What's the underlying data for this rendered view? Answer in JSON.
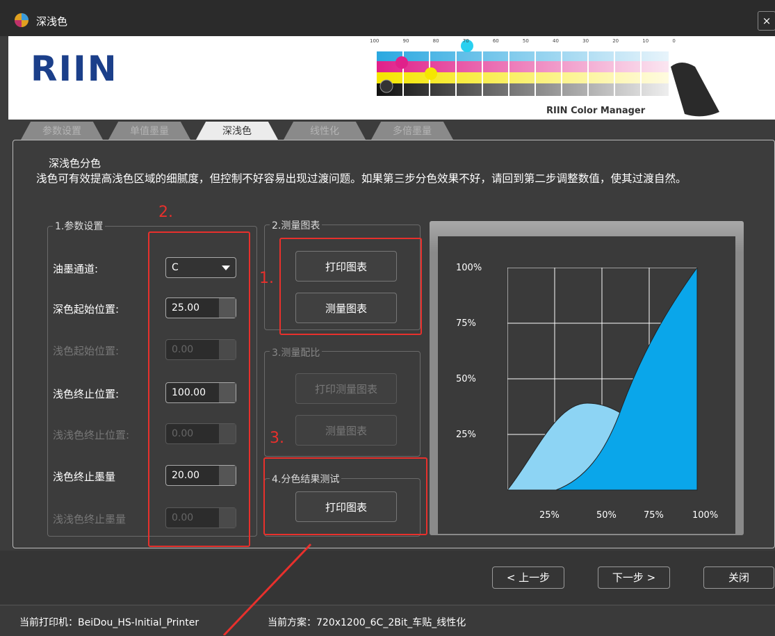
{
  "window": {
    "title": "深浅色",
    "close": "×"
  },
  "banner": {
    "logo": "RIIN",
    "scale": [
      "100",
      "90",
      "80",
      "70",
      "60",
      "50",
      "40",
      "30",
      "20",
      "10",
      "0"
    ],
    "product": "RIIN Color Manager"
  },
  "tabs": [
    "参数设置",
    "单值墨量",
    "深浅色",
    "线性化",
    "多倍墨量"
  ],
  "active_tab": 2,
  "section": {
    "title": "深浅色分色",
    "description": "浅色可有效提高浅色区域的细腻度，但控制不好容易出现过渡问题。如果第三步分色效果不好，请回到第二步调整数值，使其过渡自然。"
  },
  "params": {
    "legend": "1.参数设置",
    "rows": [
      {
        "label": "油墨通道:",
        "value": "C",
        "disabled": false
      },
      {
        "label": "深色起始位置:",
        "value": "25.00",
        "disabled": false
      },
      {
        "label": "浅色起始位置:",
        "value": "0.00",
        "disabled": true
      },
      {
        "label": "浅色终止位置:",
        "value": "100.00",
        "disabled": false
      },
      {
        "label": "浅浅色终止位置:",
        "value": "0.00",
        "disabled": true
      },
      {
        "label": "浅色终止墨量",
        "value": "20.00",
        "disabled": false
      },
      {
        "label": "浅浅色终止墨量",
        "value": "0.00",
        "disabled": true
      }
    ]
  },
  "measure": {
    "legend": "2.测量图表",
    "buttons": [
      "打印图表",
      "测量图表"
    ]
  },
  "ratio": {
    "legend": "3.测量配比",
    "buttons": [
      "打印测量图表",
      "测量图表"
    ]
  },
  "test": {
    "legend": "4.分色结果测试",
    "buttons": [
      "打印图表"
    ]
  },
  "chart": {
    "y_labels": [
      "100%",
      "75%",
      "50%",
      "25%"
    ],
    "x_labels": [
      "25%",
      "50%",
      "75%",
      "100%"
    ]
  },
  "annotations": [
    "2.",
    "1.",
    "3."
  ],
  "nav": [
    "< 上一步",
    "下一步 >",
    "关闭"
  ],
  "status": {
    "printer": "当前打印机：BeiDou_HS-Initial_Printer",
    "scheme": "当前方案：720x1200_6C_2Bit_车贴_线性化"
  }
}
